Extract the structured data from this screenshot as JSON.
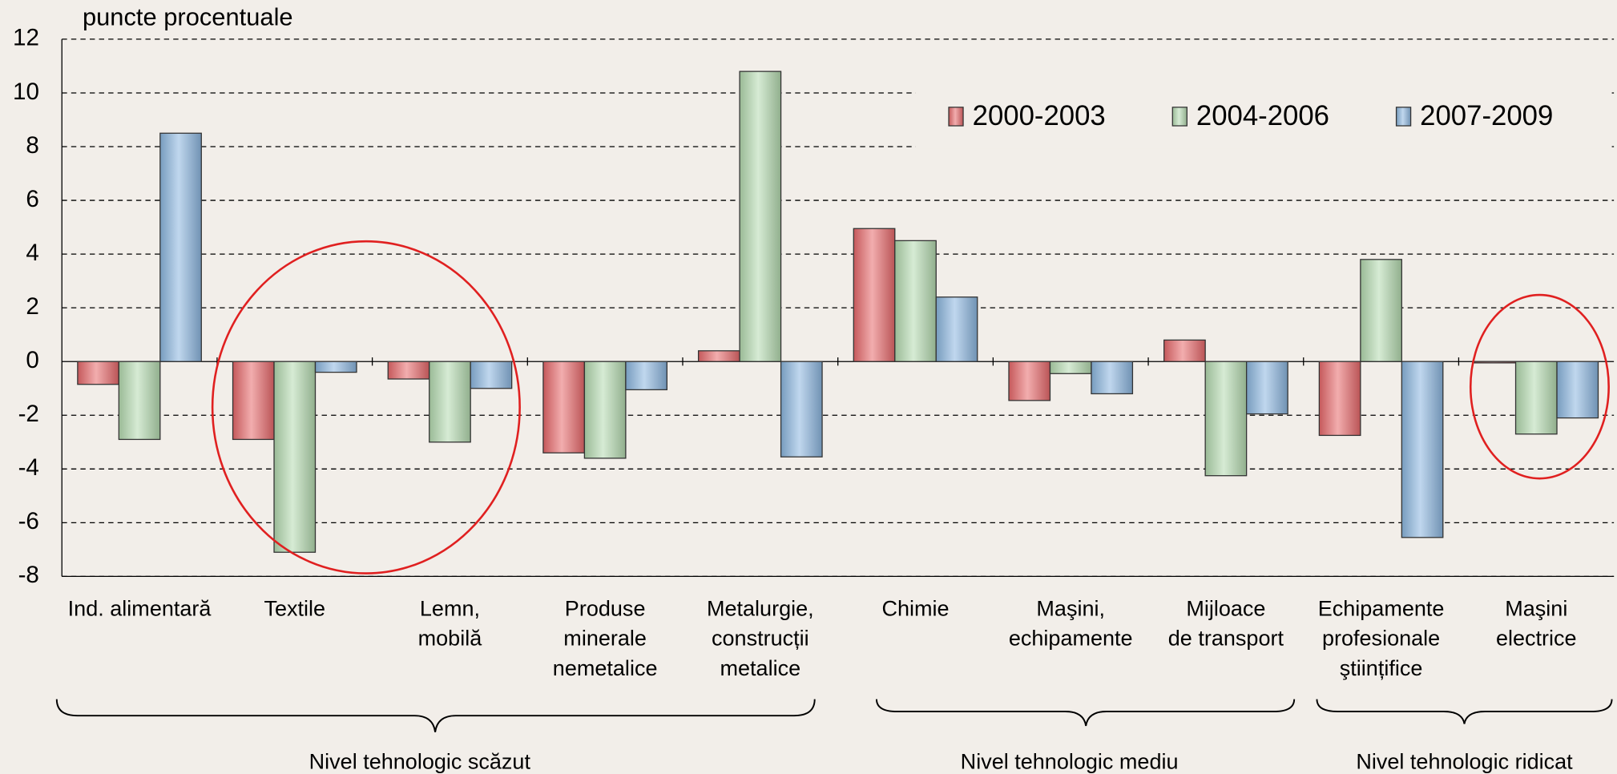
{
  "chart_data": {
    "type": "bar",
    "y_label": "puncte procentuale",
    "categories": [
      "Ind. alimentară",
      "Textile",
      "Lemn,\nmobilă",
      "Produse\nminerale\nnemetalice",
      "Metalurgie,\nconstrucții\nmetalice",
      "Chimie",
      "Maşini,\nechipamente",
      "Mijloace\nde transport",
      "Echipamente\nprofesionale\nştiințifice",
      "Maşini\nelectrice"
    ],
    "series": [
      {
        "name": "2000-2003",
        "color": "#e8696b",
        "values": [
          -0.85,
          -2.9,
          -0.65,
          -3.4,
          0.4,
          4.95,
          -1.45,
          0.8,
          -2.75,
          -0.05
        ]
      },
      {
        "name": "2004-2006",
        "color": "#b5dbb0",
        "values": [
          -2.9,
          -7.1,
          -3.0,
          -3.6,
          10.8,
          4.5,
          -0.45,
          -4.25,
          3.8,
          -2.7
        ]
      },
      {
        "name": "2007-2009",
        "color": "#8cb7e0",
        "values": [
          8.5,
          -0.4,
          -1.0,
          -1.05,
          -3.55,
          2.4,
          -1.2,
          -1.95,
          -6.55,
          -2.1
        ]
      }
    ],
    "ylim": [
      -8,
      12
    ],
    "yticks": [
      -8,
      -6,
      -4,
      -2,
      0,
      2,
      4,
      6,
      8,
      10,
      12
    ],
    "grid": true,
    "legend": "upper right",
    "groups": [
      "Nivel tehnologic scăzut",
      "Nivel tehnologic mediu",
      "Nivel tehnologic ridicat"
    ]
  }
}
